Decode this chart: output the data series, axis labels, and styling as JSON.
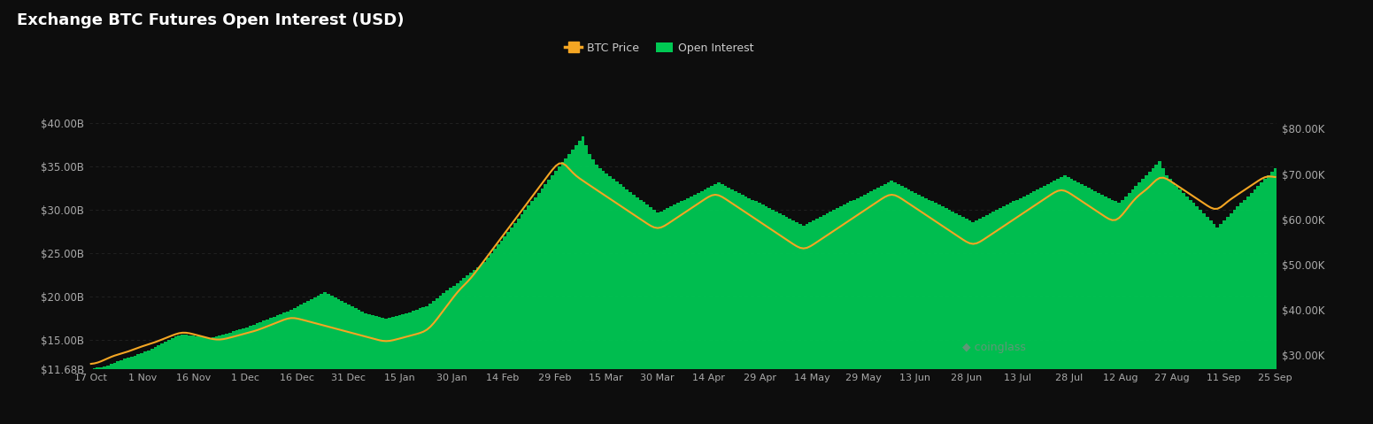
{
  "title": "Exchange BTC Futures Open Interest (USD)",
  "bg_color": "#0d0d0d",
  "bar_color": "#00c853",
  "line_color": "#f5a623",
  "left_ylim": [
    11680000000.0,
    42000000000.0
  ],
  "right_ylim": [
    27000,
    85000
  ],
  "left_yticks": [
    11680000000.0,
    15000000000.0,
    20000000000.0,
    25000000000.0,
    30000000000.0,
    35000000000.0,
    40000000000.0
  ],
  "left_ytick_labels": [
    "$11.68B",
    "$15.00B",
    "$20.00B",
    "$25.00B",
    "$30.00B",
    "$35.00B",
    "$40.00B"
  ],
  "right_yticks": [
    30000,
    40000,
    50000,
    60000,
    70000,
    80000
  ],
  "right_ytick_labels": [
    "$30.00K",
    "$40.00K",
    "$50.00K",
    "$60.00K",
    "$70.00K",
    "$80.00K"
  ],
  "xtick_labels": [
    "17 Oct",
    "1 Nov",
    "16 Nov",
    "1 Dec",
    "16 Dec",
    "31 Dec",
    "15 Jan",
    "30 Jan",
    "14 Feb",
    "29 Feb",
    "15 Mar",
    "30 Mar",
    "14 Apr",
    "29 Apr",
    "14 May",
    "29 May",
    "13 Jun",
    "28 Jun",
    "13 Jul",
    "28 Jul",
    "12 Aug",
    "27 Aug",
    "11 Sep",
    "25 Sep"
  ],
  "legend_btc_price": "BTC Price",
  "legend_open_interest": "Open Interest",
  "watermark": "coinglass",
  "grid_color": "#2a2a2a",
  "open_interest_billions": [
    11.68,
    11.75,
    11.82,
    11.9,
    12.0,
    12.1,
    12.25,
    12.4,
    12.55,
    12.7,
    12.85,
    13.0,
    13.1,
    13.2,
    13.35,
    13.5,
    13.65,
    13.8,
    14.0,
    14.2,
    14.4,
    14.6,
    14.8,
    15.0,
    15.2,
    15.4,
    15.55,
    15.65,
    15.6,
    15.55,
    15.5,
    15.45,
    15.4,
    15.35,
    15.3,
    15.25,
    15.35,
    15.45,
    15.55,
    15.65,
    15.75,
    15.85,
    16.0,
    16.1,
    16.2,
    16.35,
    16.5,
    16.65,
    16.8,
    16.95,
    17.1,
    17.25,
    17.4,
    17.55,
    17.7,
    17.85,
    18.0,
    18.15,
    18.3,
    18.5,
    18.7,
    18.9,
    19.1,
    19.3,
    19.5,
    19.7,
    19.9,
    20.1,
    20.3,
    20.5,
    20.3,
    20.1,
    19.9,
    19.7,
    19.5,
    19.3,
    19.1,
    18.9,
    18.7,
    18.5,
    18.3,
    18.1,
    18.0,
    17.9,
    17.8,
    17.7,
    17.6,
    17.5,
    17.6,
    17.7,
    17.8,
    17.9,
    18.0,
    18.1,
    18.2,
    18.35,
    18.5,
    18.65,
    18.8,
    18.95,
    19.2,
    19.5,
    19.8,
    20.1,
    20.4,
    20.7,
    21.0,
    21.3,
    21.6,
    21.9,
    22.2,
    22.5,
    22.8,
    23.1,
    23.4,
    23.7,
    24.0,
    24.5,
    25.0,
    25.5,
    26.0,
    26.5,
    27.0,
    27.5,
    28.0,
    28.5,
    29.0,
    29.5,
    30.0,
    30.5,
    31.0,
    31.5,
    32.0,
    32.5,
    33.0,
    33.5,
    34.0,
    34.5,
    35.0,
    35.5,
    36.0,
    36.5,
    37.0,
    37.5,
    38.0,
    38.5,
    37.5,
    36.5,
    35.8,
    35.2,
    34.8,
    34.5,
    34.2,
    33.9,
    33.6,
    33.3,
    33.0,
    32.7,
    32.4,
    32.1,
    31.8,
    31.5,
    31.2,
    30.9,
    30.6,
    30.3,
    30.0,
    29.7,
    29.8,
    30.0,
    30.2,
    30.4,
    30.6,
    30.8,
    31.0,
    31.2,
    31.4,
    31.6,
    31.8,
    32.0,
    32.2,
    32.4,
    32.6,
    32.8,
    33.0,
    33.2,
    33.0,
    32.8,
    32.6,
    32.4,
    32.2,
    32.0,
    31.8,
    31.6,
    31.4,
    31.2,
    31.0,
    30.8,
    30.6,
    30.4,
    30.2,
    30.0,
    29.8,
    29.6,
    29.4,
    29.2,
    29.0,
    28.8,
    28.6,
    28.4,
    28.2,
    28.4,
    28.6,
    28.8,
    29.0,
    29.2,
    29.4,
    29.6,
    29.8,
    30.0,
    30.2,
    30.4,
    30.6,
    30.8,
    31.0,
    31.2,
    31.4,
    31.6,
    31.8,
    32.0,
    32.2,
    32.4,
    32.6,
    32.8,
    33.0,
    33.2,
    33.4,
    33.2,
    33.0,
    32.8,
    32.6,
    32.4,
    32.2,
    32.0,
    31.8,
    31.6,
    31.4,
    31.2,
    31.0,
    30.8,
    30.6,
    30.4,
    30.2,
    30.0,
    29.8,
    29.6,
    29.4,
    29.2,
    29.0,
    28.8,
    28.6,
    28.8,
    29.0,
    29.2,
    29.4,
    29.6,
    29.8,
    30.0,
    30.2,
    30.4,
    30.6,
    30.8,
    31.0,
    31.2,
    31.4,
    31.6,
    31.8,
    32.0,
    32.2,
    32.4,
    32.6,
    32.8,
    33.0,
    33.2,
    33.4,
    33.6,
    33.8,
    34.0,
    33.8,
    33.6,
    33.4,
    33.2,
    33.0,
    32.8,
    32.6,
    32.4,
    32.2,
    32.0,
    31.8,
    31.6,
    31.4,
    31.2,
    31.0,
    30.8,
    31.2,
    31.6,
    32.0,
    32.4,
    32.8,
    33.2,
    33.6,
    34.0,
    34.4,
    34.8,
    35.2,
    35.6,
    34.8,
    34.0,
    33.6,
    33.2,
    32.8,
    32.4,
    32.0,
    31.6,
    31.2,
    30.8,
    30.4,
    30.0,
    29.6,
    29.2,
    28.8,
    28.4,
    28.0,
    28.4,
    28.8,
    29.2,
    29.6,
    30.0,
    30.4,
    30.8,
    31.2,
    31.6,
    32.0,
    32.4,
    32.8,
    33.2,
    33.6,
    34.0,
    34.4,
    34.8
  ],
  "btc_price_data": [
    28000,
    28100,
    28300,
    28600,
    29000,
    29400,
    29700,
    30000,
    30200,
    30400,
    30600,
    30800,
    31100,
    31400,
    31700,
    32000,
    32200,
    32400,
    32600,
    32900,
    33200,
    33500,
    33800,
    34100,
    34400,
    34700,
    35000,
    35200,
    35100,
    34900,
    34700,
    34500,
    34300,
    34100,
    33900,
    33700,
    33500,
    33400,
    33300,
    33500,
    33700,
    33900,
    34100,
    34300,
    34500,
    34700,
    34900,
    35100,
    35300,
    35500,
    35800,
    36100,
    36400,
    36700,
    37000,
    37300,
    37600,
    37900,
    38200,
    38500,
    38300,
    38100,
    37900,
    37700,
    37500,
    37300,
    37100,
    36900,
    36700,
    36500,
    36300,
    36100,
    35900,
    35700,
    35500,
    35300,
    35100,
    34900,
    34700,
    34500,
    34300,
    34100,
    33900,
    33700,
    33500,
    33300,
    33100,
    32900,
    33100,
    33300,
    33500,
    33700,
    33900,
    34100,
    34300,
    34500,
    34700,
    34900,
    35100,
    35300,
    36000,
    37000,
    38000,
    39000,
    40000,
    41000,
    42000,
    43000,
    44000,
    45000,
    45500,
    46000,
    47000,
    48000,
    49000,
    50000,
    51000,
    52000,
    53000,
    54000,
    55000,
    56000,
    57000,
    58000,
    59000,
    60000,
    61000,
    62000,
    63000,
    64000,
    65000,
    66000,
    67000,
    68000,
    69000,
    70000,
    71000,
    72000,
    73000,
    73500,
    72000,
    71000,
    70000,
    69500,
    69000,
    68500,
    68000,
    67500,
    67000,
    66500,
    66000,
    65500,
    65000,
    64500,
    64000,
    63500,
    63000,
    62500,
    62000,
    61500,
    61000,
    60500,
    60000,
    59500,
    59000,
    58500,
    58000,
    57500,
    58000,
    58500,
    59000,
    59500,
    60000,
    60500,
    61000,
    61500,
    62000,
    62500,
    63000,
    63500,
    64000,
    64500,
    65000,
    65500,
    66000,
    65500,
    65000,
    64500,
    64000,
    63500,
    63000,
    62500,
    62000,
    61500,
    61000,
    60500,
    60000,
    59500,
    59000,
    58500,
    58000,
    57500,
    57000,
    56500,
    56000,
    55500,
    55000,
    54500,
    54000,
    53500,
    53000,
    53500,
    54000,
    54500,
    55000,
    55500,
    56000,
    56500,
    57000,
    57500,
    58000,
    58500,
    59000,
    59500,
    60000,
    60500,
    61000,
    61500,
    62000,
    62500,
    63000,
    63500,
    64000,
    64500,
    65000,
    65500,
    66000,
    65500,
    65000,
    64500,
    64000,
    63500,
    63000,
    62500,
    62000,
    61500,
    61000,
    60500,
    60000,
    59500,
    59000,
    58500,
    58000,
    57500,
    57000,
    56500,
    56000,
    55500,
    55000,
    54500,
    54000,
    54500,
    55000,
    55500,
    56000,
    56500,
    57000,
    57500,
    58000,
    58500,
    59000,
    59500,
    60000,
    60500,
    61000,
    61500,
    62000,
    62500,
    63000,
    63500,
    64000,
    64500,
    65000,
    65500,
    66000,
    66500,
    67000,
    66500,
    66000,
    65500,
    65000,
    64500,
    64000,
    63500,
    63000,
    62500,
    62000,
    61500,
    61000,
    60500,
    60000,
    59500,
    59000,
    60000,
    61000,
    62000,
    63000,
    64000,
    65000,
    65500,
    66000,
    66500,
    67000,
    68000,
    69000,
    70000,
    69500,
    69000,
    68500,
    68000,
    67500,
    67000,
    66500,
    66000,
    65500,
    65000,
    64500,
    64000,
    63500,
    63000,
    62500,
    62000,
    61500,
    62500,
    63500,
    64000,
    64500,
    65000,
    65500,
    66000,
    66500,
    67000,
    67500,
    68000,
    68500,
    69000,
    69500,
    70000,
    69500,
    69000
  ]
}
